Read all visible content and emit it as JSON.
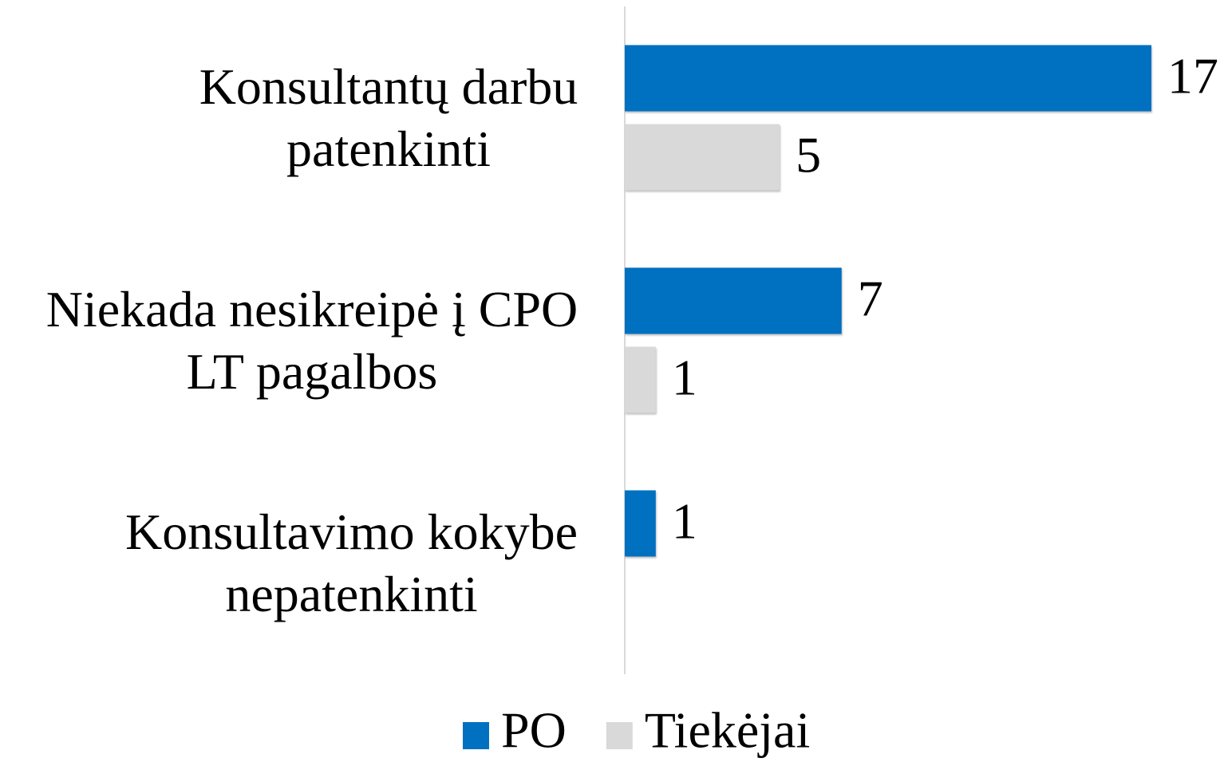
{
  "chart_data": {
    "type": "bar",
    "orientation": "horizontal",
    "categories": [
      "Konsultantų darbu patenkinti",
      "Niekada nesikreipė į CPO LT pagalbos",
      "Konsultavimo kokybe nepatenkinti"
    ],
    "series": [
      {
        "name": "PO",
        "color": "#0070c0",
        "values": [
          17,
          7,
          1
        ]
      },
      {
        "name": "Tiekėjai",
        "color": "#d9d9d9",
        "values": [
          5,
          1,
          null
        ]
      }
    ],
    "xlim": [
      0,
      17
    ],
    "legend": "bottom"
  }
}
